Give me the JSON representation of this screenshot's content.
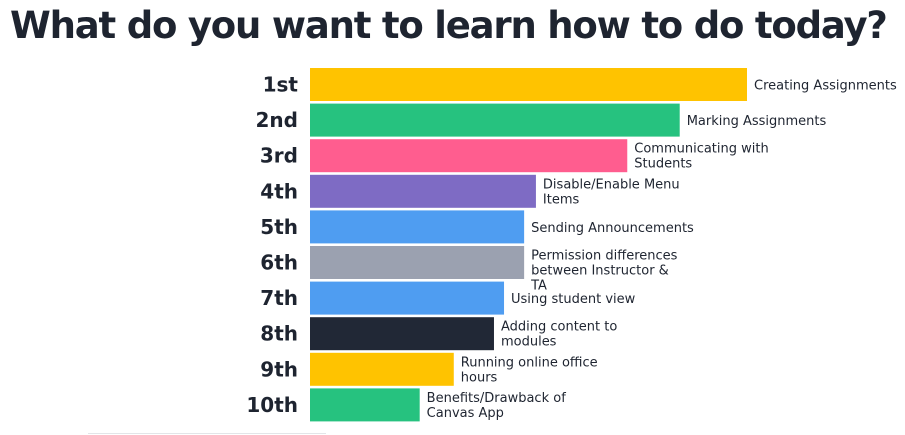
{
  "title": "What do you want to learn how to do today?",
  "chart_data": {
    "type": "bar",
    "orientation": "horizontal",
    "title": "What do you want to learn how to do today?",
    "xlabel": "",
    "ylabel": "",
    "grid": false,
    "legend": "none",
    "items": [
      {
        "rank": "1st",
        "label": "Creating Assignments",
        "value": 100,
        "color": "#FFC300"
      },
      {
        "rank": "2nd",
        "label": "Marking Assignments",
        "value": 84.6,
        "color": "#26C27F"
      },
      {
        "rank": "3rd",
        "label": "Communicating with Students",
        "value": 72.6,
        "color": "#FF5D8F"
      },
      {
        "rank": "4th",
        "label": "Disable/Enable Menu Items",
        "value": 51.7,
        "color": "#7E6BC4"
      },
      {
        "rank": "5th",
        "label": "Sending Announcements",
        "value": 49.0,
        "color": "#4F9DF1"
      },
      {
        "rank": "6th",
        "label": "Permission differences between Instructor & TA",
        "value": 49.0,
        "color": "#9BA1B0"
      },
      {
        "rank": "7th",
        "label": "Using student view",
        "value": 44.4,
        "color": "#4F9DF1"
      },
      {
        "rank": "8th",
        "label": "Adding content to modules",
        "value": 42.1,
        "color": "#212836"
      },
      {
        "rank": "9th",
        "label": "Running online office hours",
        "value": 32.9,
        "color": "#FFC300"
      },
      {
        "rank": "10th",
        "label": "Benefits/Drawback of Canvas App",
        "value": 25.1,
        "color": "#26C27F"
      }
    ]
  }
}
